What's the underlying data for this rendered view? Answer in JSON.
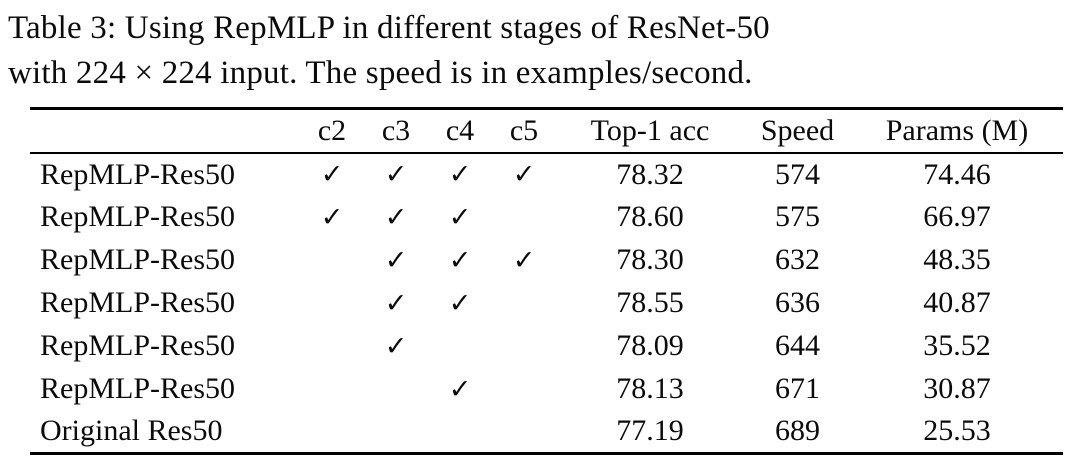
{
  "caption": {
    "label": "Table 3:",
    "line1": "Table 3: Using RepMLP in different stages of ResNet-50",
    "line2": "with 224 × 224 input. The speed is in examples/second."
  },
  "table": {
    "headers": {
      "model": "",
      "c2": "c2",
      "c3": "c3",
      "c4": "c4",
      "c5": "c5",
      "top1": "Top-1 acc",
      "speed": "Speed",
      "params": "Params (M)"
    },
    "check_glyph": "✓",
    "rows": [
      {
        "model": "RepMLP-Res50",
        "c2": "✓",
        "c3": "✓",
        "c4": "✓",
        "c5": "✓",
        "top1": "78.32",
        "speed": "574",
        "params": "74.46"
      },
      {
        "model": "RepMLP-Res50",
        "c2": "✓",
        "c3": "✓",
        "c4": "✓",
        "c5": "",
        "top1": "78.60",
        "speed": "575",
        "params": "66.97"
      },
      {
        "model": "RepMLP-Res50",
        "c2": "",
        "c3": "✓",
        "c4": "✓",
        "c5": "✓",
        "top1": "78.30",
        "speed": "632",
        "params": "48.35"
      },
      {
        "model": "RepMLP-Res50",
        "c2": "",
        "c3": "✓",
        "c4": "✓",
        "c5": "",
        "top1": "78.55",
        "speed": "636",
        "params": "40.87"
      },
      {
        "model": "RepMLP-Res50",
        "c2": "",
        "c3": "✓",
        "c4": "",
        "c5": "",
        "top1": "78.09",
        "speed": "644",
        "params": "35.52"
      },
      {
        "model": "RepMLP-Res50",
        "c2": "",
        "c3": "",
        "c4": "✓",
        "c5": "",
        "top1": "78.13",
        "speed": "671",
        "params": "30.87"
      },
      {
        "model": "Original Res50",
        "c2": "",
        "c3": "",
        "c4": "",
        "c5": "",
        "top1": "77.19",
        "speed": "689",
        "params": "25.53"
      }
    ]
  }
}
